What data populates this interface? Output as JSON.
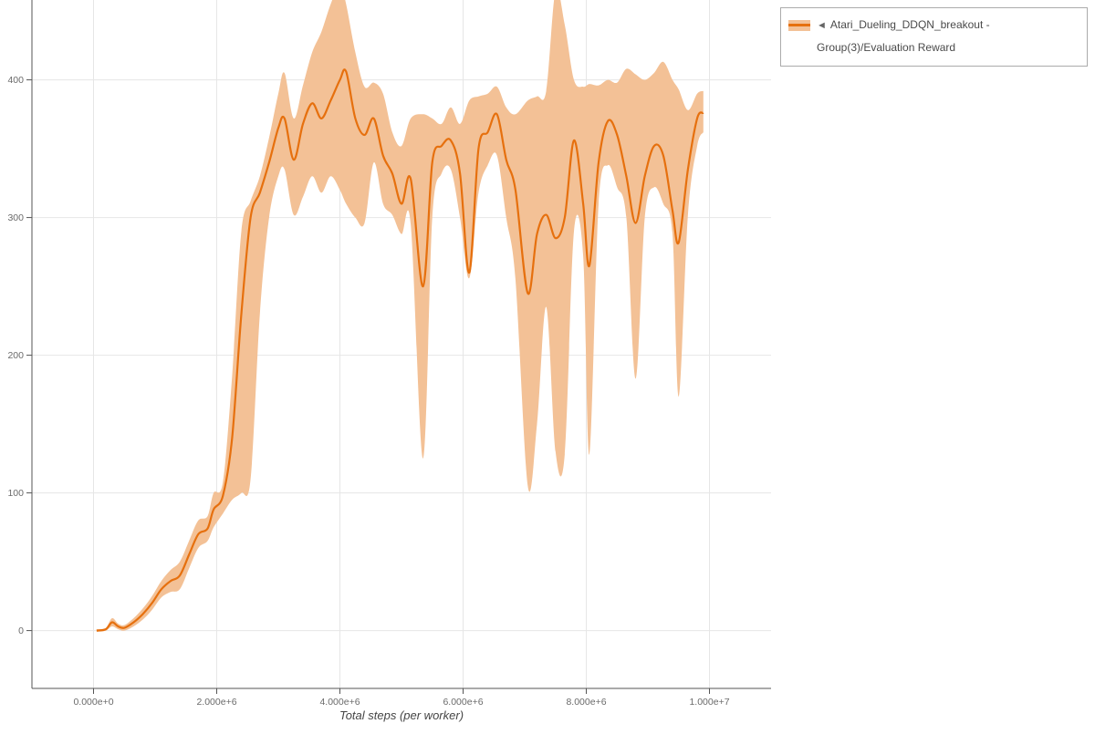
{
  "legend": {
    "marker": "◄",
    "label": "Atari_Dueling_DDQN_breakout - Group(3)/Evaluation Reward"
  },
  "colors": {
    "line": "#e6700e",
    "band": "#f3c196",
    "grid": "#e6e6e6",
    "axis": "#555555",
    "tick_label": "#6a6a6a",
    "axis_title": "#454545",
    "background": "#ffffff"
  },
  "chart_data": {
    "type": "line",
    "title": "",
    "xlabel": "Total steps (per worker)",
    "ylabel": "",
    "grid": true,
    "legend_position": "top-right-outside",
    "x_tick_labels": [
      "0.000e+0",
      "2.000e+6",
      "4.000e+6",
      "6.000e+6",
      "8.000e+6",
      "1.000e+7"
    ],
    "x_tick_values": [
      0,
      2000000,
      4000000,
      6000000,
      8000000,
      10000000
    ],
    "y_tick_labels": [
      "0",
      "100",
      "200",
      "300",
      "400"
    ],
    "y_tick_values": [
      0,
      100,
      200,
      300,
      400
    ],
    "x_range": [
      -1000000,
      11000000
    ],
    "y_range": [
      -42,
      458
    ],
    "series": [
      {
        "name": "Atari_Dueling_DDQN_breakout - Group(3)/Evaluation Reward",
        "color": "#e6700e",
        "band_color": "#f3c196",
        "x": [
          50000,
          200000,
          300000,
          400000,
          500000,
          650000,
          800000,
          950000,
          1100000,
          1250000,
          1400000,
          1550000,
          1700000,
          1850000,
          1950000,
          2100000,
          2250000,
          2400000,
          2550000,
          2700000,
          2850000,
          3000000,
          3100000,
          3250000,
          3400000,
          3550000,
          3700000,
          3850000,
          4000000,
          4100000,
          4250000,
          4400000,
          4550000,
          4700000,
          4850000,
          5000000,
          5150000,
          5350000,
          5500000,
          5650000,
          5800000,
          5950000,
          6100000,
          6250000,
          6400000,
          6550000,
          6700000,
          6850000,
          7050000,
          7200000,
          7350000,
          7500000,
          7650000,
          7800000,
          7950000,
          8050000,
          8200000,
          8350000,
          8500000,
          8650000,
          8800000,
          8950000,
          9100000,
          9250000,
          9400000,
          9500000,
          9650000,
          9800000,
          9900000
        ],
        "mean": [
          0,
          1,
          6,
          3,
          2,
          6,
          12,
          20,
          30,
          36,
          40,
          55,
          70,
          74,
          88,
          98,
          140,
          230,
          300,
          318,
          340,
          365,
          372,
          342,
          368,
          383,
          372,
          385,
          400,
          406,
          372,
          360,
          372,
          345,
          332,
          310,
          328,
          250,
          340,
          352,
          356,
          332,
          260,
          350,
          362,
          375,
          342,
          320,
          245,
          288,
          302,
          285,
          300,
          356,
          310,
          265,
          340,
          370,
          360,
          330,
          296,
          330,
          352,
          345,
          305,
          282,
          335,
          372,
          376
        ],
        "band_lower": [
          -1,
          0,
          3,
          1,
          0,
          3,
          8,
          15,
          24,
          28,
          30,
          45,
          60,
          65,
          75,
          85,
          95,
          100,
          110,
          230,
          300,
          330,
          335,
          302,
          315,
          330,
          318,
          330,
          320,
          310,
          300,
          296,
          340,
          310,
          302,
          288,
          295,
          125,
          300,
          332,
          335,
          300,
          256,
          318,
          338,
          345,
          300,
          255,
          105,
          150,
          235,
          130,
          128,
          290,
          272,
          128,
          310,
          338,
          322,
          300,
          183,
          300,
          322,
          310,
          288,
          170,
          302,
          352,
          362
        ],
        "band_upper": [
          1,
          2,
          9,
          5,
          4,
          9,
          16,
          25,
          36,
          44,
          50,
          65,
          80,
          83,
          100,
          108,
          185,
          290,
          312,
          330,
          358,
          390,
          405,
          372,
          396,
          420,
          435,
          455,
          470,
          455,
          420,
          395,
          398,
          390,
          362,
          352,
          372,
          375,
          372,
          368,
          380,
          368,
          385,
          388,
          390,
          395,
          380,
          375,
          385,
          388,
          392,
          465,
          440,
          400,
          395,
          397,
          396,
          400,
          398,
          408,
          404,
          400,
          405,
          413,
          400,
          393,
          378,
          390,
          392
        ]
      }
    ]
  }
}
